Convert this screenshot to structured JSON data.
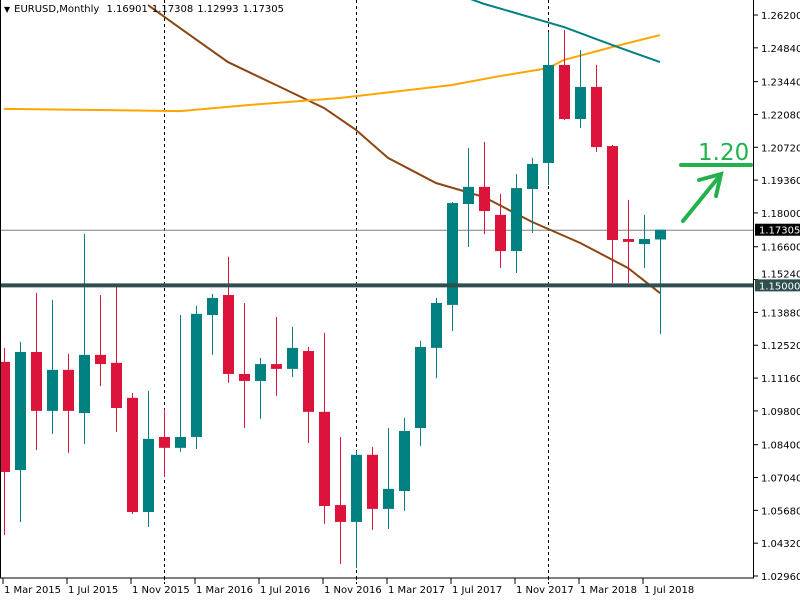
{
  "header": {
    "menu_icon": "triangle-down-icon",
    "symbol_period": "EURUSD,Monthly",
    "open": "1.16901",
    "high": "1.17308",
    "low": "1.12993",
    "close": "1.17305"
  },
  "annotation": {
    "text": "1.20",
    "color": "#22b14c",
    "arrow_icon": "arrow-up-right-icon"
  },
  "price_labels": {
    "current": "1.17305",
    "level": "1.15000"
  },
  "colors": {
    "bull": "#008080",
    "bear": "#dc143c",
    "ma_fast": "#8b4513",
    "ma_slow": "#ffa500",
    "ma_mid": "#008080",
    "level_line": "#2f4f4f",
    "current_line": "#808080"
  },
  "chart_data": {
    "type": "candlestick",
    "symbol": "EURUSD",
    "timeframe": "Monthly",
    "ylim": [
      1.0296,
      1.262
    ],
    "y_ticks": [
      "1.26200",
      "1.24840",
      "1.23440",
      "1.22080",
      "1.20720",
      "1.19360",
      "1.18000",
      "1.16600",
      "1.15240",
      "1.13880",
      "1.12520",
      "1.11160",
      "1.09800",
      "1.08400",
      "1.07040",
      "1.05680",
      "1.04320",
      "1.02960"
    ],
    "x_ticks": [
      "1 Mar 2015",
      "1 Jul 2015",
      "1 Nov 2015",
      "1 Mar 2016",
      "1 Jul 2016",
      "1 Nov 2016",
      "1 Mar 2017",
      "1 Jul 2017",
      "1 Nov 2017",
      "1 Mar 2018",
      "1 Jul 2018"
    ],
    "year_separators": [
      "Jan 2016",
      "Jan 2017",
      "Jan 2018"
    ],
    "horizontal_levels": [
      1.15,
      1.17305
    ],
    "candles": [
      [
        "Mar 2015",
        1.1183,
        1.1241,
        1.0466,
        1.0727
      ],
      [
        "Apr 2015",
        1.0735,
        1.1266,
        1.052,
        1.1224
      ],
      [
        "May 2015",
        1.1224,
        1.1469,
        1.0818,
        1.098
      ],
      [
        "Jun 2015",
        1.098,
        1.144,
        1.0885,
        1.115
      ],
      [
        "Jul 2015",
        1.115,
        1.1216,
        1.0806,
        1.098
      ],
      [
        "Aug 2015",
        1.0971,
        1.1713,
        1.0843,
        1.1212
      ],
      [
        "Sep 2015",
        1.1212,
        1.146,
        1.1083,
        1.1174
      ],
      [
        "Oct 2015",
        1.1179,
        1.1498,
        1.0893,
        1.0992
      ],
      [
        "Nov 2015",
        1.1034,
        1.1054,
        1.0553,
        1.0561
      ],
      [
        "Dec 2015",
        1.0561,
        1.1063,
        1.0499,
        1.0864
      ],
      [
        "Jan 2016",
        1.0872,
        1.0988,
        1.0706,
        1.0827
      ],
      [
        "Feb 2016",
        1.0827,
        1.1377,
        1.081,
        1.0872
      ],
      [
        "Mar 2016",
        1.0872,
        1.1415,
        1.0822,
        1.1382
      ],
      [
        "Apr 2016",
        1.1377,
        1.1464,
        1.1212,
        1.1448
      ],
      [
        "May 2016",
        1.146,
        1.1618,
        1.1096,
        1.1133
      ],
      [
        "Jun 2016",
        1.1133,
        1.1427,
        1.0909,
        1.1104
      ],
      [
        "Jul 2016",
        1.1104,
        1.1199,
        1.0947,
        1.1174
      ],
      [
        "Aug 2016",
        1.1174,
        1.1369,
        1.1042,
        1.1154
      ],
      [
        "Sep 2016",
        1.1154,
        1.1328,
        1.1121,
        1.1241
      ],
      [
        "Oct 2016",
        1.1228,
        1.1245,
        1.0847,
        1.0976
      ],
      [
        "Nov 2016",
        1.0976,
        1.1303,
        1.0512,
        1.0586
      ],
      [
        "Dec 2016",
        1.059,
        1.0872,
        1.0346,
        1.052
      ],
      [
        "Jan 2017",
        1.052,
        1.0814,
        1.0329,
        1.0798
      ],
      [
        "Feb 2017",
        1.0798,
        1.0831,
        1.0487,
        1.0574
      ],
      [
        "Mar 2017",
        1.0574,
        1.0909,
        1.0491,
        1.0657
      ],
      [
        "Apr 2017",
        1.0648,
        1.0951,
        1.0566,
        1.0897
      ],
      [
        "May 2017",
        1.0909,
        1.127,
        1.0835,
        1.1245
      ],
      [
        "Jun 2017",
        1.1241,
        1.1448,
        1.1116,
        1.1427
      ],
      [
        "Jul 2017",
        1.1419,
        1.1845,
        1.1311,
        1.1841
      ],
      [
        "Aug 2017",
        1.1837,
        1.2069,
        1.1659,
        1.1908
      ],
      [
        "Sep 2017",
        1.1908,
        1.2094,
        1.1713,
        1.1808
      ],
      [
        "Oct 2017",
        1.1792,
        1.1879,
        1.1572,
        1.1642
      ],
      [
        "Nov 2017",
        1.1642,
        1.1961,
        1.1551,
        1.1903
      ],
      [
        "Dec 2017",
        1.1899,
        1.2028,
        1.1717,
        1.2003
      ],
      [
        "Jan 2018",
        1.2007,
        1.255,
        1.1916,
        1.2413
      ],
      [
        "Feb 2018",
        1.2413,
        1.2558,
        1.2185,
        1.2189
      ],
      [
        "Mar 2018",
        1.2189,
        1.2475,
        1.2152,
        1.2322
      ],
      [
        "Apr 2018",
        1.2322,
        1.2413,
        1.2053,
        1.2073
      ],
      [
        "May 2018",
        1.2077,
        1.2082,
        1.151,
        1.1688
      ],
      [
        "Jun 2018",
        1.1692,
        1.1854,
        1.151,
        1.168
      ],
      [
        "Jul 2018",
        1.1671,
        1.1792,
        1.1572,
        1.1692
      ],
      [
        "Aug 2018",
        1.16901,
        1.17308,
        1.12993,
        1.17305
      ]
    ],
    "moving_averages": [
      {
        "color": "#8b4513",
        "points": [
          [
            "Dec 2015",
            1.2661
          ],
          [
            "Feb 2016",
            1.2566
          ],
          [
            "May 2016",
            1.2425
          ],
          [
            "Aug 2016",
            1.233
          ],
          [
            "Nov 2016",
            1.2235
          ],
          [
            "Jan 2017",
            1.2144
          ],
          [
            "Mar 2017",
            1.2028
          ],
          [
            "Jun 2017",
            1.1924
          ],
          [
            "Sep 2017",
            1.1866
          ],
          [
            "Dec 2017",
            1.1763
          ],
          [
            "Mar 2018",
            1.1676
          ],
          [
            "Jun 2018",
            1.1572
          ],
          [
            "Aug 2018",
            1.1468
          ]
        ]
      },
      {
        "color": "#ffa500",
        "points": [
          [
            "Mar 2015",
            1.2231
          ],
          [
            "Feb 2016",
            1.2222
          ],
          [
            "Jul 2016",
            1.2251
          ],
          [
            "Dec 2016",
            1.2276
          ],
          [
            "Jul 2017",
            1.233
          ],
          [
            "Oct 2017",
            1.2367
          ],
          [
            "Jan 2018",
            1.24
          ],
          [
            "Feb 2018",
            1.2434
          ],
          [
            "May 2018",
            1.2487
          ],
          [
            "Aug 2018",
            1.2537
          ]
        ]
      },
      {
        "color": "#008080",
        "points": [
          [
            "Aug 2017",
            1.269
          ],
          [
            "Sep 2017",
            1.2666
          ],
          [
            "Feb 2018",
            1.257
          ],
          [
            "May 2018",
            1.2496
          ],
          [
            "Aug 2018",
            1.2425
          ]
        ]
      }
    ]
  }
}
